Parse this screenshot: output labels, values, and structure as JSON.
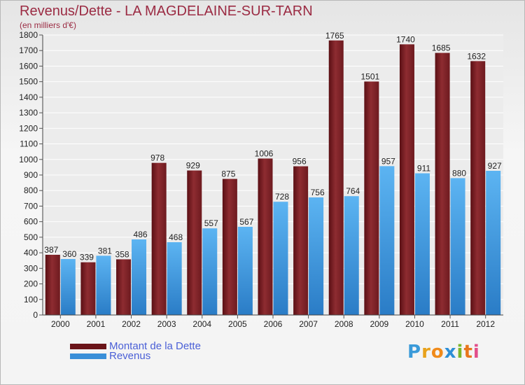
{
  "header": {
    "title": "Revenus/Dette - LA MAGDELAINE-SUR-TARN",
    "subtitle": "(en milliers d'€)"
  },
  "legend": {
    "debt_label": "Montant de la Dette",
    "revenue_label": "Revenus"
  },
  "logo": {
    "text": "Proxiti"
  },
  "colors": {
    "debt": "#7a1f24",
    "debt_light": "#9b3439",
    "revenue": "#3a8fd8",
    "revenue_light": "#5fb0ee",
    "title": "#9b2b43",
    "legend_text": "#4a5fd6"
  },
  "chart_data": {
    "type": "bar",
    "title": "Revenus/Dette - LA MAGDELAINE-SUR-TARN",
    "subtitle": "(en milliers d'€)",
    "categories": [
      "2000",
      "2001",
      "2002",
      "2003",
      "2004",
      "2005",
      "2006",
      "2007",
      "2008",
      "2009",
      "2010",
      "2011",
      "2012"
    ],
    "series": [
      {
        "name": "Montant de la Dette",
        "values": [
          387,
          339,
          358,
          978,
          929,
          875,
          1006,
          956,
          1765,
          1501,
          1740,
          1685,
          1632
        ]
      },
      {
        "name": "Revenus",
        "values": [
          360,
          381,
          486,
          468,
          557,
          567,
          728,
          756,
          764,
          957,
          911,
          880,
          927
        ]
      }
    ],
    "ylim": [
      0,
      1800
    ],
    "yticks": [
      0,
      100,
      200,
      300,
      400,
      500,
      600,
      700,
      800,
      900,
      1000,
      1100,
      1200,
      1300,
      1400,
      1500,
      1600,
      1700,
      1800
    ],
    "grid": true,
    "legend_position": "bottom-left"
  }
}
